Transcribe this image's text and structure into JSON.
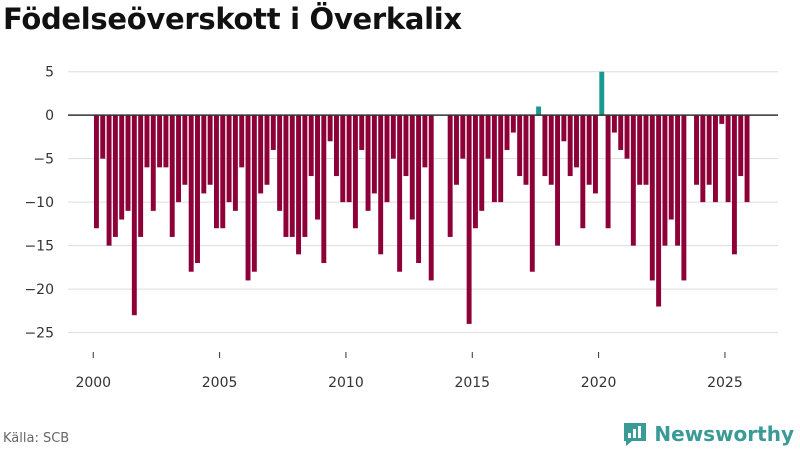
{
  "title": "Födelseöverskott i Överkalix",
  "source": "Källa: SCB",
  "brand": {
    "name": "Newsworthy",
    "icon": "chart-logo-icon"
  },
  "colors": {
    "negative": "#8e0038",
    "positive": "#1a9a8f",
    "grid": "#dddddd",
    "zero_line": "#333333"
  },
  "chart_data": {
    "type": "bar",
    "title": "Födelseöverskott i Överkalix",
    "xlabel": "",
    "ylabel": "",
    "x_unit": "decimal year (monthly-quarterly bars)",
    "xlim": [
      1999.0,
      2027.1
    ],
    "ylim": [
      -27,
      6
    ],
    "x_ticks": [
      2000,
      2005,
      2010,
      2015,
      2020,
      2025
    ],
    "y_ticks": [
      5,
      0,
      -5,
      -10,
      -15,
      -20,
      -25
    ],
    "grid": true,
    "series": [
      {
        "x": [
          2000.125,
          2000.375,
          2000.625,
          2000.875,
          2001.125,
          2001.375,
          2001.625,
          2001.875,
          2002.125,
          2002.375,
          2002.625,
          2002.875,
          2003.125,
          2003.375,
          2003.625,
          2003.875,
          2004.125,
          2004.375,
          2004.625,
          2004.875,
          2005.125,
          2005.375,
          2005.625,
          2005.875,
          2006.125,
          2006.375,
          2006.625,
          2006.875,
          2007.125,
          2007.375,
          2007.625,
          2007.875,
          2008.125,
          2008.375,
          2008.625,
          2008.875,
          2009.125,
          2009.375,
          2009.625,
          2009.875,
          2010.125,
          2010.375,
          2010.625,
          2010.875,
          2011.125,
          2011.375,
          2011.625,
          2011.875,
          2012.125,
          2012.375,
          2012.625,
          2012.875,
          2013.125,
          2013.375,
          2013.625,
          2013.875,
          2014.125,
          2014.375,
          2014.625,
          2014.875,
          2015.125,
          2015.375,
          2015.625,
          2015.875,
          2016.125,
          2016.375,
          2016.625,
          2016.875,
          2017.125,
          2017.375,
          2017.625,
          2017.875,
          2018.125,
          2018.375,
          2018.625,
          2018.875,
          2019.125,
          2019.375,
          2019.625,
          2019.875,
          2020.125,
          2020.375,
          2020.625,
          2020.875,
          2021.125,
          2021.375,
          2021.625,
          2021.875,
          2022.125,
          2022.375,
          2022.625,
          2022.875,
          2023.125,
          2023.375,
          2023.625,
          2023.875,
          2024.125,
          2024.375,
          2024.625,
          2024.875,
          2025.125,
          2025.375,
          2025.625,
          2025.875
        ],
        "values": [
          -13,
          -5,
          -15,
          -14,
          -12,
          -11,
          -23,
          -14,
          -6,
          -11,
          -6,
          -6,
          -14,
          -10,
          -8,
          -18,
          -17,
          -9,
          -8,
          -13,
          -13,
          -10,
          -11,
          -6,
          -19,
          -18,
          -9,
          -8,
          -4,
          -11,
          -14,
          -14,
          -16,
          -14,
          -7,
          -12,
          -17,
          -3,
          -7,
          -10,
          -10,
          -13,
          -4,
          -11,
          -9,
          -16,
          -10,
          -5,
          -18,
          -7,
          -12,
          -17,
          -6,
          -19,
          0,
          0,
          -14,
          -8,
          -5,
          -24,
          -13,
          -11,
          -5,
          -10,
          -10,
          -4,
          -2,
          -7,
          -8,
          -18,
          1,
          -7,
          -8,
          -15,
          -3,
          -7,
          -6,
          -13,
          -8,
          -9,
          5,
          -13,
          -2,
          -4,
          -5,
          -15,
          -8,
          -8,
          -19,
          -22,
          -15,
          -12,
          -15,
          -19,
          0,
          -8,
          -10,
          -8,
          -10,
          -1,
          -10,
          -16,
          -7,
          -10
        ]
      }
    ]
  }
}
